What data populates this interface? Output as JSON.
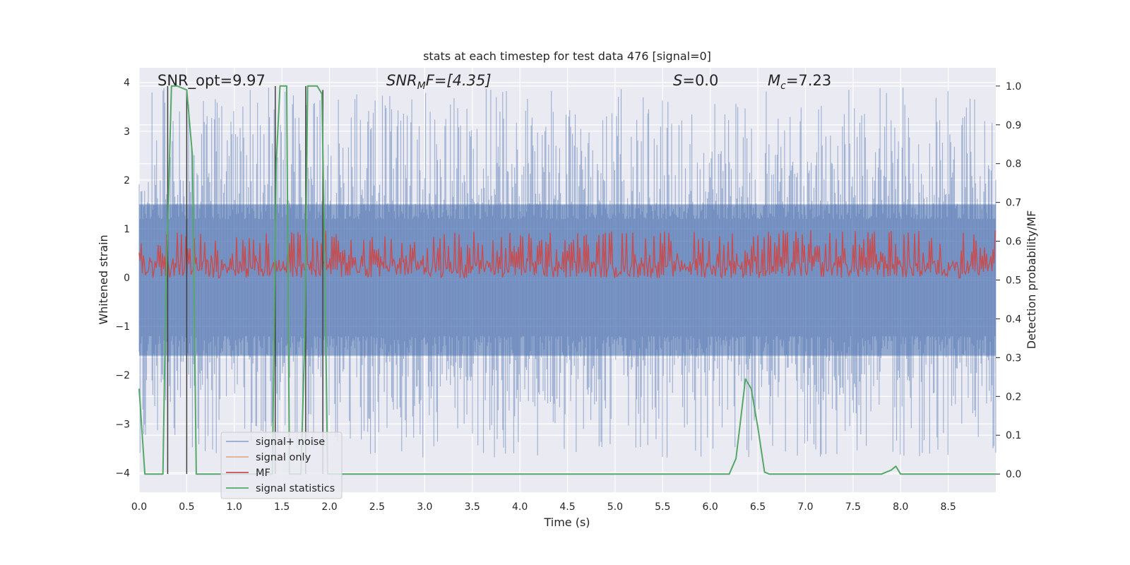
{
  "chart_data": {
    "type": "line",
    "title": "stats at each timestep for test data 476 [signal=0]",
    "xlabel": "Time (s)",
    "ylabel": "Whitened strain",
    "y2label": "Detection probability/MF",
    "xlim": [
      0,
      9.0
    ],
    "ylim": [
      -4.4,
      4.3
    ],
    "y2lim": [
      -0.047,
      1.047
    ],
    "x_ticks": [
      "0.0",
      "0.5",
      "1.0",
      "1.5",
      "2.0",
      "2.5",
      "3.0",
      "3.5",
      "4.0",
      "4.5",
      "5.0",
      "5.5",
      "6.0",
      "6.5",
      "7.0",
      "7.5",
      "8.0",
      "8.5"
    ],
    "y_ticks": [
      "4",
      "3",
      "2",
      "1",
      "0",
      "−1",
      "−2",
      "−3",
      "−4"
    ],
    "y2_ticks": [
      "1.0",
      "0.9",
      "0.8",
      "0.7",
      "0.6",
      "0.5",
      "0.4",
      "0.3",
      "0.2",
      "0.1",
      "0.0"
    ],
    "annotations": {
      "snr_opt": "SNR_opt=9.97",
      "snr_mf_sym": "SNR",
      "snr_mf_sub": "M",
      "snr_mf_rest": "F=[4.35]",
      "s_sym": "S",
      "s_rest": "=0.0",
      "mc_sym": "M",
      "mc_sub": "c",
      "mc_rest": "=7.23"
    },
    "legend": {
      "placement": "lower-left",
      "entries": [
        "signal+ noise",
        "signal only",
        "MF",
        "signal statistics"
      ]
    },
    "series": [
      {
        "name": "signal+ noise",
        "axis": "left",
        "color": "#4c72b0",
        "style": "noise-band",
        "approx_range": [
          -3.7,
          3.9
        ]
      },
      {
        "name": "signal only",
        "axis": "left",
        "color": "#dd8452",
        "values": []
      },
      {
        "name": "MF",
        "axis": "right",
        "color": "#c44e52",
        "style": "noise-band",
        "approx_range": [
          0.5,
          0.63
        ]
      },
      {
        "name": "signal statistics",
        "axis": "right",
        "color": "#55a868",
        "x": [
          0.0,
          0.06,
          0.1,
          0.25,
          0.28,
          0.34,
          0.4,
          0.5,
          0.56,
          0.6,
          0.62,
          0.7,
          1.4,
          1.44,
          1.48,
          1.55,
          1.58,
          1.7,
          1.74,
          1.77,
          1.8,
          1.87,
          1.92,
          1.95,
          1.98,
          2.05,
          6.2,
          6.27,
          6.31,
          6.37,
          6.43,
          6.5,
          6.57,
          6.62,
          7.8,
          7.9,
          7.95,
          8.0,
          8.4,
          9.0
        ],
        "values": [
          0.22,
          0.0,
          0.0,
          0.0,
          0.45,
          1.0,
          1.0,
          0.99,
          0.82,
          0.0,
          0.0,
          0.0,
          0.0,
          0.8,
          1.0,
          1.0,
          0.0,
          0.0,
          0.35,
          1.0,
          1.0,
          1.0,
          0.98,
          0.55,
          0.0,
          0.0,
          0.0,
          0.04,
          0.12,
          0.245,
          0.22,
          0.12,
          0.005,
          0.0,
          0.0,
          0.01,
          0.02,
          0.0,
          0.0,
          0.0
        ]
      },
      {
        "name": "vertical markers",
        "axis": "right",
        "color": "#404040",
        "x": [
          0.3,
          0.5,
          1.43,
          1.75,
          1.93
        ],
        "y_top": [
          1.0,
          0.99,
          1.0,
          1.0,
          0.99
        ]
      }
    ]
  }
}
